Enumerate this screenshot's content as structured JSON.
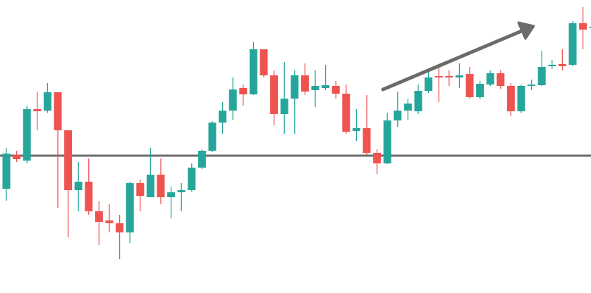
{
  "chart_data": {
    "type": "candlestick",
    "up_color": "#26a69a",
    "down_color": "#ef5350",
    "ylim": [
      0,
      416
    ],
    "open": [
      148,
      196,
      188,
      261,
      259,
      285,
      231,
      146,
      158,
      116,
      103,
      99,
      86,
      156,
      136,
      168,
      136,
      143,
      146,
      178,
      202,
      242,
      259,
      291,
      282,
      346,
      309,
      254,
      276,
      309,
      288,
      291,
      294,
      283,
      230,
      234,
      199,
      184,
      245,
      259,
      258,
      287,
      308,
      308,
      306,
      311,
      278,
      296,
      312,
      294,
      258,
      294,
      295,
      322,
      325,
      324,
      383,
      376
    ],
    "high": [
      206,
      202,
      266,
      286,
      298,
      285,
      231,
      186,
      191,
      131,
      126,
      111,
      158,
      161,
      206,
      191,
      151,
      156,
      184,
      204,
      244,
      271,
      306,
      296,
      356,
      346,
      316,
      328,
      316,
      326,
      316,
      324,
      301,
      296,
      261,
      281,
      204,
      256,
      286,
      276,
      296,
      318,
      320,
      316,
      326,
      321,
      301,
      316,
      316,
      298,
      296,
      303,
      344,
      331,
      346,
      386,
      406,
      386
    ],
    "low": [
      131,
      186,
      184,
      231,
      256,
      121,
      79,
      116,
      111,
      68,
      86,
      48,
      71,
      116,
      136,
      126,
      106,
      116,
      144,
      176,
      200,
      226,
      246,
      266,
      281,
      306,
      238,
      226,
      226,
      281,
      264,
      288,
      276,
      226,
      216,
      196,
      169,
      183,
      236,
      246,
      254,
      284,
      271,
      294,
      291,
      276,
      275,
      294,
      290,
      251,
      256,
      288,
      294,
      318,
      316,
      322,
      346,
      370
    ],
    "close": [
      198,
      190,
      261,
      258,
      285,
      231,
      146,
      158,
      116,
      101,
      99,
      86,
      156,
      138,
      168,
      136,
      143,
      146,
      178,
      202,
      242,
      259,
      289,
      282,
      346,
      309,
      254,
      276,
      309,
      286,
      294,
      295,
      283,
      229,
      234,
      199,
      184,
      245,
      259,
      269,
      287,
      306,
      306,
      306,
      309,
      278,
      297,
      312,
      294,
      258,
      294,
      296,
      321,
      324,
      322,
      383,
      374,
      378
    ]
  }
}
